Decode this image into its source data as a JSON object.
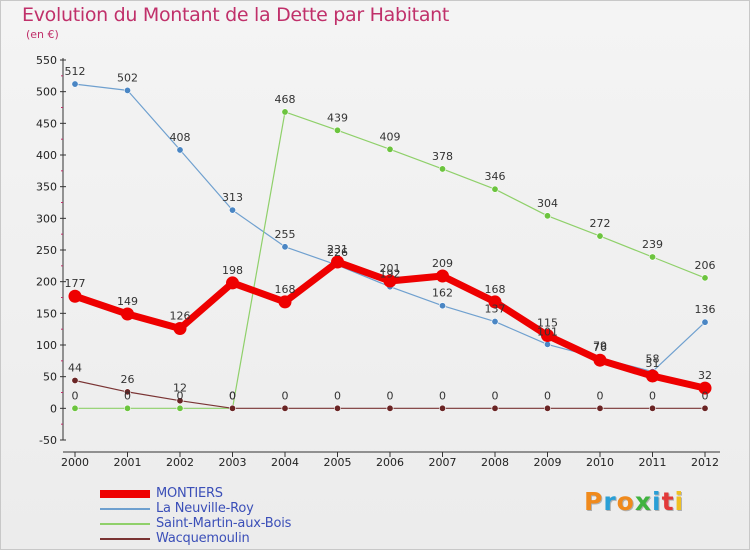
{
  "chart_data": {
    "type": "line",
    "title": "Evolution du Montant de la Dette par Habitant",
    "subtitle": "(en €)",
    "categories": [
      "2000",
      "2001",
      "2002",
      "2003",
      "2004",
      "2005",
      "2006",
      "2007",
      "2008",
      "2009",
      "2010",
      "2011",
      "2012"
    ],
    "y_ticks": [
      "550",
      "500",
      "450",
      "400",
      "350",
      "300",
      "250",
      "200",
      "150",
      "100",
      "50",
      "0",
      "-50"
    ],
    "ylim": [
      -50,
      550
    ],
    "grid": false,
    "legend_position": "bottom-left",
    "series": [
      {
        "name": "La Neuville-Roy",
        "color": "#6fa0cf",
        "dot": "#4a86c4",
        "width": 1.2,
        "values": [
          512,
          502,
          408,
          313,
          255,
          226,
          192,
          162,
          137,
          101,
          79,
          58,
          136
        ],
        "labels": [
          "512",
          "502",
          "408",
          "313",
          "255",
          "226",
          "192",
          "162",
          "137",
          "101",
          "79",
          "58",
          "136"
        ]
      },
      {
        "name": "Saint-Martin-aux-Bois",
        "color": "#8fd06a",
        "dot": "#6cc43e",
        "width": 1.2,
        "values": [
          0,
          0,
          0,
          0,
          468,
          439,
          409,
          378,
          346,
          304,
          272,
          239,
          206
        ],
        "labels": [
          "0",
          "0",
          "0",
          "0",
          "468",
          "439",
          "409",
          "378",
          "346",
          "304",
          "272",
          "239",
          "206"
        ]
      },
      {
        "name": "Wacquemoulin",
        "color": "#7a3434",
        "dot": "#6a2525",
        "width": 1.2,
        "values": [
          44,
          26,
          12,
          0,
          0,
          0,
          0,
          0,
          0,
          0,
          0,
          0,
          0
        ],
        "labels": [
          "44",
          "26",
          "12",
          "0",
          "0",
          "0",
          "0",
          "0",
          "0",
          "0",
          "0",
          "0",
          "0"
        ]
      },
      {
        "name": "MONTIERS",
        "color": "#ee0000",
        "dot": "#ee0000",
        "width": 7,
        "values": [
          177,
          149,
          126,
          198,
          168,
          231,
          201,
          209,
          168,
          115,
          76,
          51,
          32
        ],
        "labels": [
          "177",
          "149",
          "126",
          "198",
          "168",
          "231",
          "201",
          "209",
          "168",
          "115",
          "76",
          "51",
          "32"
        ]
      }
    ],
    "legend_order": [
      "MONTIERS",
      "La Neuville-Roy",
      "Saint-Martin-aux-Bois",
      "Wacquemoulin"
    ]
  },
  "logo": {
    "text": "Proxiti",
    "colors": [
      "#f08a1c",
      "#2a9fd6",
      "#f08a1c",
      "#3fb33f",
      "#2a9fd6",
      "#e23a3a",
      "#f0c020"
    ]
  }
}
